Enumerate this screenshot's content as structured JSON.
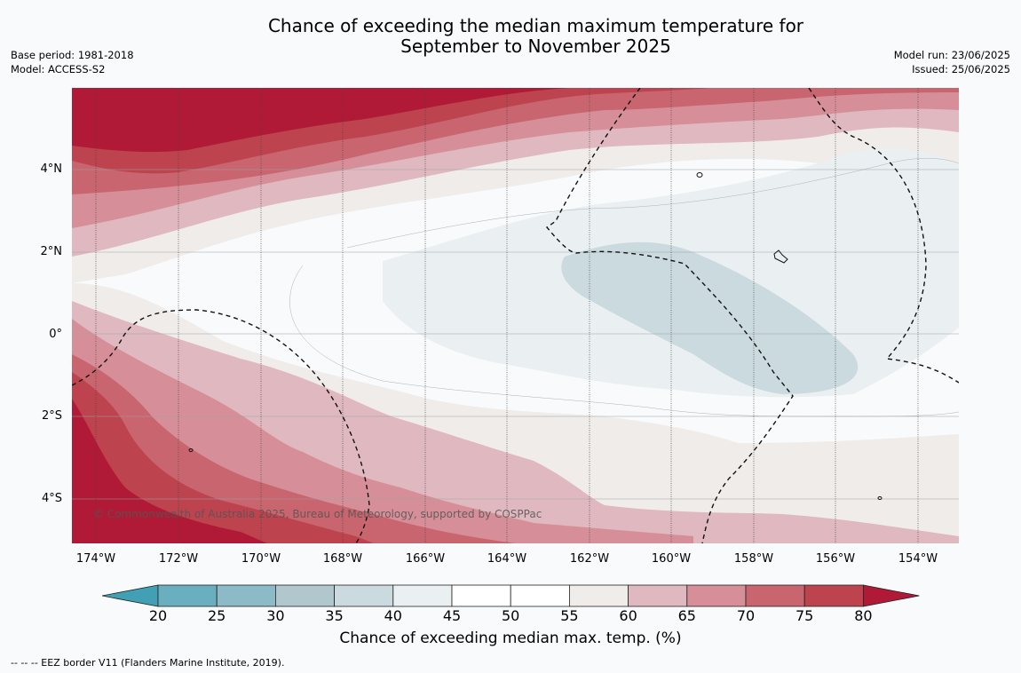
{
  "title_line1": "Chance of exceeding the median maximum temperature for",
  "title_line2": "September to November 2025",
  "meta_left": [
    "Base period: 1981-2018",
    "Model: ACCESS-S2"
  ],
  "meta_right": [
    "Model run: 23/06/2025",
    "Issued: 25/06/2025"
  ],
  "y_labels": [
    "4°N",
    "2°N",
    "0°",
    "2°S",
    "4°S"
  ],
  "x_labels": [
    "174°W",
    "172°W",
    "170°W",
    "168°W",
    "166°W",
    "164°W",
    "162°W",
    "160°W",
    "158°W",
    "156°W",
    "154°W"
  ],
  "copyright": "© Commonwealth of Australia 2025, Bureau of Meteorology, supported by COSPPac",
  "colorbar": {
    "ticks": [
      "20",
      "25",
      "30",
      "35",
      "40",
      "45",
      "50",
      "55",
      "60",
      "65",
      "70",
      "75",
      "80"
    ],
    "colors": [
      "#42a0b5",
      "#6aafc0",
      "#8cbac6",
      "#b0c7cd",
      "#cbdadf",
      "#eaf0f2",
      "#ffffff",
      "#ffffff",
      "#efecea",
      "#e0b8bf",
      "#d68e98",
      "#c9656f",
      "#bd434f",
      "#b01a36"
    ],
    "title": "Chance of exceeding median max. temp. (%)"
  },
  "footer": "--  --  -- EEZ border V11 (Flanders Marine Institute, 2019)."
}
